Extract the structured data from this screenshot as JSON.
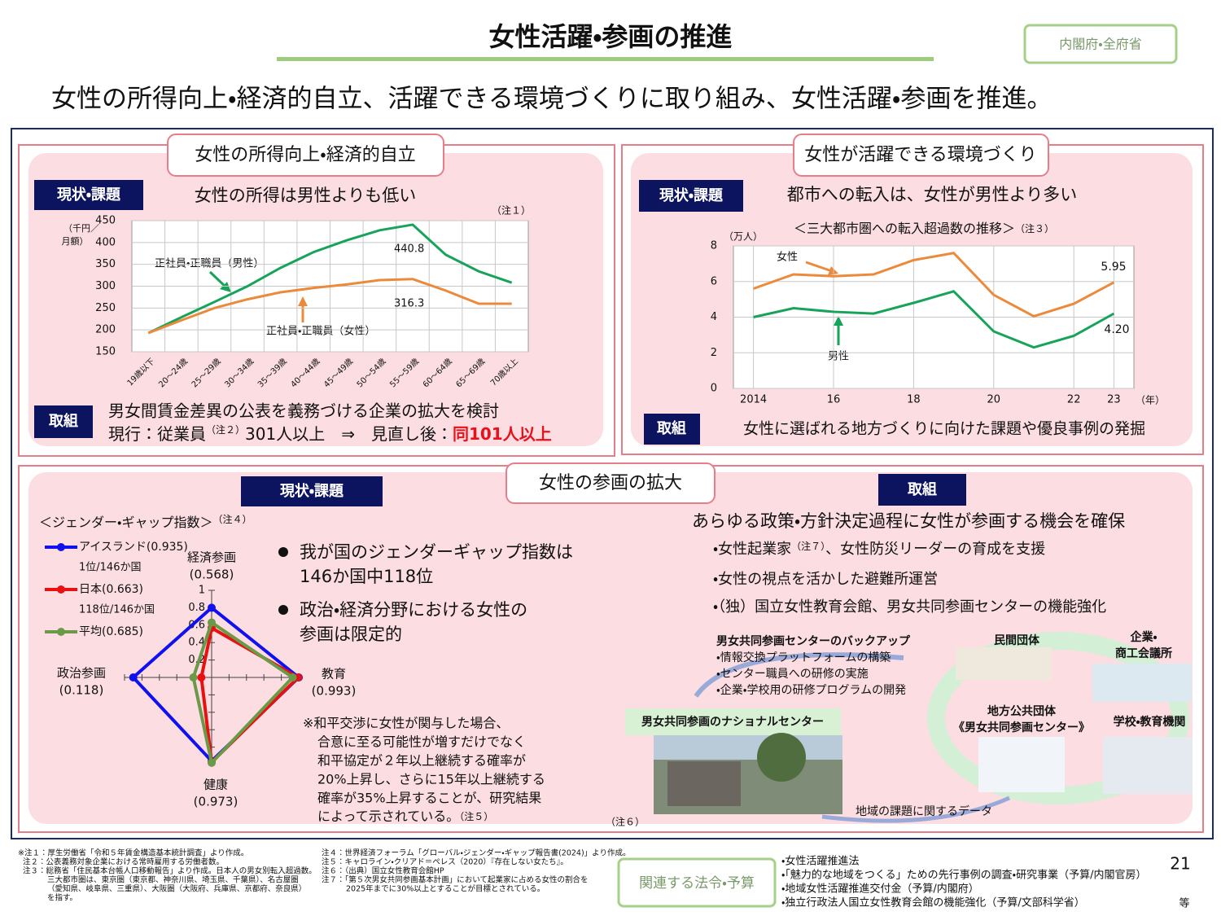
{
  "header": {
    "title": "女性活躍・参画の推進",
    "ministry": "内閣府・全府省",
    "lead": "女性の所得向上・経済的自立、活躍できる環境づくりに取り組み、女性活躍・参画を推進。"
  },
  "panel_income": {
    "title": "女性の所得向上・経済的自立",
    "issue_tag": "現状・課題",
    "issue": "女性の所得は男性よりも低い",
    "note": "（注１）",
    "action_tag": "取組",
    "action_line1": "男女間賃金差異の公表を義務づける企業の拡大を検討",
    "action_line2": "現行：従業員",
    "action_note": "（注２）",
    "action_line2_rest": "301人以上　⇒　見直し後：",
    "action_highlight": "同101人以上",
    "chart": {
      "type": "line",
      "y_label": [
        "（千円／",
        "月額）"
      ],
      "categories": [
        "19歳以下",
        "20～24歳",
        "25～29歳",
        "30～34歳",
        "35～39歳",
        "40～44歳",
        "45～49歳",
        "50～54歳",
        "55～59歳",
        "60～64歳",
        "65～69歳",
        "70歳以上"
      ],
      "ylim": [
        150,
        450
      ],
      "yticks": [
        150,
        200,
        250,
        300,
        350,
        400,
        450
      ],
      "grid": true,
      "series": [
        {
          "name": "正社員・正職員（男性）",
          "color": "#17a35a",
          "values": [
            193,
            229,
            264,
            300,
            342,
            378,
            405,
            428,
            440.8,
            372,
            334,
            308
          ]
        },
        {
          "name": "正社員・正職員（女性）",
          "color": "#ec8a3c",
          "values": [
            193,
            222,
            250,
            270,
            286,
            296,
            304,
            314,
            316.3,
            290,
            260,
            260
          ]
        }
      ]
    }
  },
  "panel_env": {
    "title": "女性が活躍できる環境づくり",
    "issue_tag": "現状・課題",
    "issue": "都市への転入は、女性が男性より多い",
    "action_tag": "取組",
    "action": "女性に選ばれる地方づくりに向けた課題や優良事例の発掘",
    "chart": {
      "type": "line",
      "title": "＜三大都市圏への転入超過数の推移＞",
      "title_note": "（注３）",
      "y_label": "（万人）",
      "x_label": "（年）",
      "x": [
        2014,
        2015,
        2016,
        2017,
        2018,
        2019,
        2020,
        2021,
        2022,
        2023
      ],
      "xlim": [
        2013.5,
        2023.5
      ],
      "xticks": [
        2014,
        {
          "value": 2016,
          "label": "16"
        },
        {
          "value": 2018,
          "label": "18"
        },
        {
          "value": 2020,
          "label": "20"
        },
        {
          "value": 2022,
          "label": "22"
        },
        {
          "value": 2023,
          "label": "23"
        }
      ],
      "ylim": [
        0,
        8
      ],
      "yticks": [
        0,
        2,
        4,
        6,
        8
      ],
      "grid": true,
      "series": [
        {
          "name": "女性",
          "color": "#ec8a3c",
          "values": [
            5.6,
            6.4,
            6.3,
            6.4,
            7.2,
            7.6,
            5.25,
            4.05,
            4.75,
            5.95
          ]
        },
        {
          "name": "男性",
          "color": "#17a35a",
          "values": [
            4.0,
            4.5,
            4.3,
            4.2,
            4.8,
            5.45,
            3.2,
            2.3,
            2.95,
            4.2
          ],
          "value_labels": [
            null,
            null,
            null,
            null,
            null,
            null,
            null,
            null,
            null,
            "4.20"
          ]
        }
      ]
    }
  },
  "panel_participation": {
    "title": "女性の参画の拡大",
    "issue_tag": "現状・課題",
    "action_tag": "取組",
    "chart": {
      "type": "radar",
      "title": "＜ジェンダー・ギャップ指数＞",
      "title_note": "（注４）",
      "categories": [
        "経済参画",
        "教育",
        "健康",
        "政治参画"
      ],
      "rlim": [
        0,
        1
      ],
      "rticks": [
        0.2,
        0.4,
        0.6,
        0.8,
        1
      ],
      "series": [
        {
          "name": "アイスランド(0.935)",
          "rank": "1位/146か国",
          "color": "#1010f0",
          "values": [
            0.8,
            1,
            0.96,
            0.9
          ]
        },
        {
          "name": "日本(0.663)",
          "rank": "118位/146か国",
          "color": "#e81010",
          "values": [
            0.568,
            0.993,
            0.973,
            0.118
          ],
          "value_labels": [
            "(0.568)",
            "(0.993)",
            "(0.973)",
            "(0.118)"
          ]
        },
        {
          "name": "平均(0.685)",
          "color": "#6a9a48",
          "values": [
            0.63,
            0.93,
            0.98,
            0.21
          ]
        }
      ]
    },
    "bullets": [
      [
        "我が国のジェンダーギャップ指数は",
        "146か国中118位"
      ],
      [
        "政治・経済分野における女性の",
        "参画は限定的"
      ]
    ],
    "study": [
      "※和平交渉に女性が関与した場合、",
      "合意に至る可能性が増すだけでなく",
      "和平協定が２年以上継続する確率が",
      "20%上昇し、さらに15年以上継続する",
      "確率が35%上昇することが、研究結果",
      "によって示されている。"
    ],
    "study_note": "（注５）",
    "action_lead": "あらゆる政策・方針決定過程に女性が参画する機会を確保",
    "action_items": [
      "・女性起業家",
      "・女性の視点を活かした避難所運営",
      "・（独）国立女性教育会館、男女共同参画センターの機能強化"
    ],
    "action_item1_note": "（注７）",
    "action_item1_rest": "、女性防災リーダーの育成を支援",
    "diagram": {
      "backup_title": "男女共同参画センターのバックアップ",
      "backup_items": [
        "・情報交換プラットフォームの構築",
        "・センター職員への研修の実施",
        "・企業・学校用の研修プログラムの開発"
      ],
      "national_center": "男女共同参画のナショナルセンター",
      "photo_note": "（注６）",
      "private": "民間団体",
      "business": [
        "企業・",
        "商工会議所"
      ],
      "local": [
        "地方公共団体",
        "《男女共同参画センター》"
      ],
      "school": "学校・教育機関",
      "data_flow": "地域の課題に関するデータ"
    }
  },
  "footer": {
    "notes_left": [
      "※注１：厚生労働省「令和５年賃金構造基本統計調査」より作成。",
      "注２：公表義務対象企業における常時雇用する労働者数。",
      "注３：総務省「住民基本台帳人口移動報告」より作成。日本人の男女別転入超過数。",
      "三大都市圏は、東京圏（東京都、神奈川県、埼玉県、千葉県）、名古屋圏",
      "（愛知県、岐阜県、三重県）、大阪圏（大阪府、兵庫県、京都府、奈良県）",
      "を指す。"
    ],
    "notes_right": [
      "注４：世界経済フォーラム「グローバル・ジェンダー・ギャップ報告書(2024)」より作成。",
      "注５：キャロライン・クリアド＝ペレス（2020）『存在しない女たち』。",
      "注６：（出典）国立女性教育会館HP",
      "注７：「第５次男女共同参画基本計画」において起業家に占める女性の割合を",
      "2025年までに30%以上とすることが目標とされている。"
    ],
    "related_tag": "関連する法令・予算",
    "related": [
      "・女性活躍推進法",
      "・「魅力的な地域をつくる」ための先行事例の調査・研究事業（予算/内閣官房）",
      "・地域女性活躍推進交付金（予算/内閣府）",
      "・独立行政法人国立女性教育会館の機能強化（予算/文部科学省）"
    ],
    "etc": "等",
    "page": "21"
  }
}
